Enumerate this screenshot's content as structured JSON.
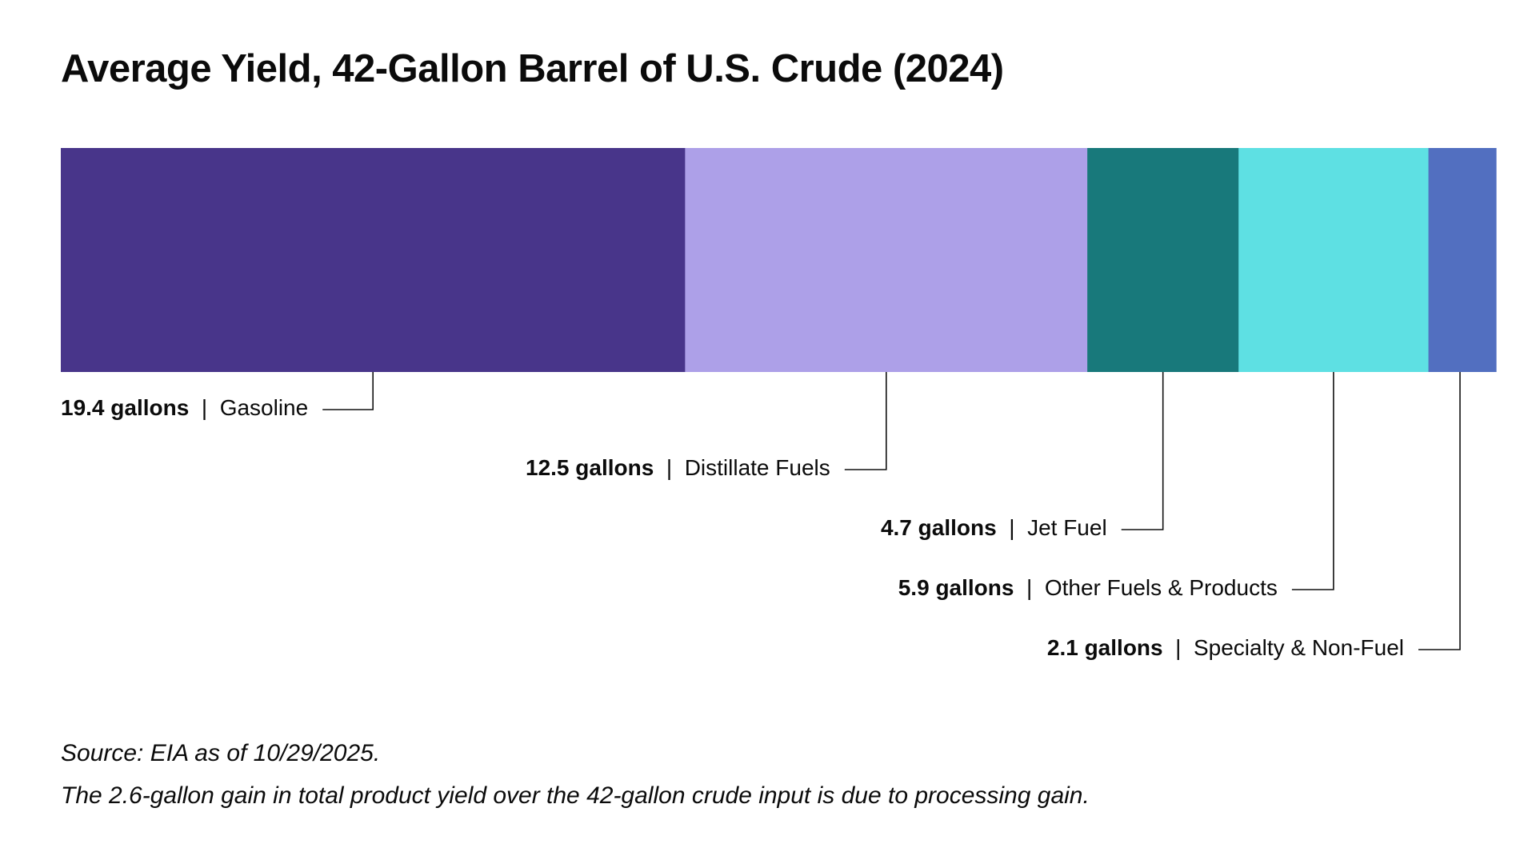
{
  "chart_data": {
    "type": "bar",
    "orientation": "horizontal-stacked",
    "title": "Average Yield, 42-Gallon Barrel of U.S. Crude (2024)",
    "unit": "gallons",
    "separator": "|",
    "segments": [
      {
        "category": "Gasoline",
        "value": 19.4,
        "value_label": "19.4 gallons",
        "color": "#48358a"
      },
      {
        "category": "Distillate Fuels",
        "value": 12.5,
        "value_label": "12.5 gallons",
        "color": "#ada0e8"
      },
      {
        "category": "Jet Fuel",
        "value": 4.7,
        "value_label": "4.7 gallons",
        "color": "#18797b"
      },
      {
        "category": "Other Fuels & Products",
        "value": 5.9,
        "value_label": "5.9 gallons",
        "color": "#5ee0e3"
      },
      {
        "category": "Specialty & Non-Fuel",
        "value": 2.1,
        "value_label": "2.1 gallons",
        "color": "#526fc0"
      }
    ],
    "source": "Source: EIA as of 10/29/2025.",
    "note": "The 2.6-gallon gain in total product yield over the 42-gallon crude input is due to processing gain."
  }
}
